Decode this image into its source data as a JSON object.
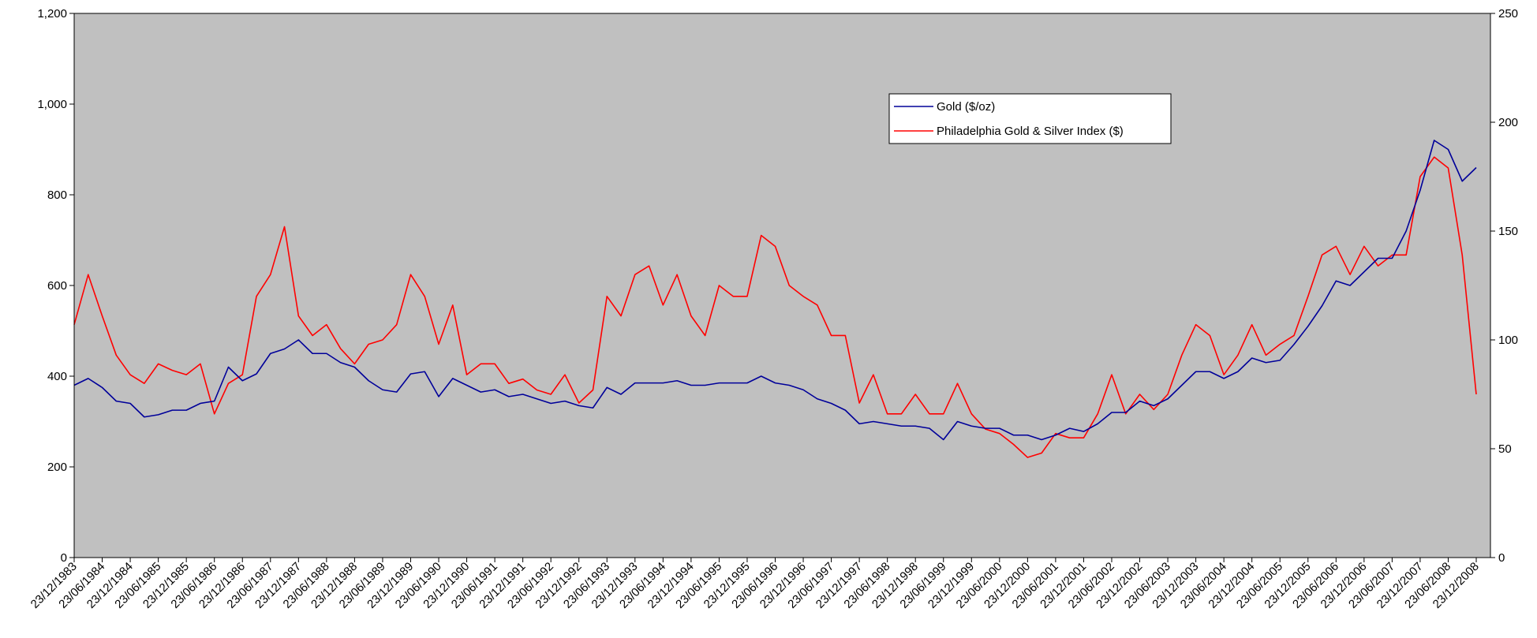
{
  "chart_data": {
    "type": "line",
    "categories": [
      "23/12/1983",
      null,
      "23/06/1984",
      null,
      "23/12/1984",
      null,
      "23/06/1985",
      null,
      "23/12/1985",
      null,
      "23/06/1986",
      null,
      "23/12/1986",
      null,
      "23/06/1987",
      null,
      "23/12/1987",
      null,
      "23/06/1988",
      null,
      "23/12/1988",
      null,
      "23/06/1989",
      null,
      "23/12/1989",
      null,
      "23/06/1990",
      null,
      "23/12/1990",
      null,
      "23/06/1991",
      null,
      "23/12/1991",
      null,
      "23/06/1992",
      null,
      "23/12/1992",
      null,
      "23/06/1993",
      null,
      "23/12/1993",
      null,
      "23/06/1994",
      null,
      "23/12/1994",
      null,
      "23/06/1995",
      null,
      "23/12/1995",
      null,
      "23/06/1996",
      null,
      "23/12/1996",
      null,
      "23/06/1997",
      null,
      "23/12/1997",
      null,
      "23/06/1998",
      null,
      "23/12/1998",
      null,
      "23/06/1999",
      null,
      "23/12/1999",
      null,
      "23/06/2000",
      null,
      "23/12/2000",
      null,
      "23/06/2001",
      null,
      "23/12/2001",
      null,
      "23/06/2002",
      null,
      "23/12/2002",
      null,
      "23/06/2003",
      null,
      "23/12/2003",
      null,
      "23/06/2004",
      null,
      "23/12/2004",
      null,
      "23/06/2005",
      null,
      "23/12/2005",
      null,
      "23/06/2006",
      null,
      "23/12/2006",
      null,
      "23/06/2007",
      null,
      "23/12/2007",
      null,
      "23/06/2008",
      null,
      "23/12/2008"
    ],
    "series": [
      {
        "name": "Gold ($/oz)",
        "color": "#000099",
        "axis": "y",
        "values": [
          380,
          395,
          375,
          345,
          340,
          310,
          315,
          325,
          325,
          340,
          345,
          420,
          390,
          405,
          450,
          460,
          480,
          450,
          450,
          430,
          420,
          390,
          370,
          365,
          405,
          410,
          355,
          395,
          380,
          365,
          370,
          355,
          360,
          350,
          340,
          345,
          335,
          330,
          375,
          360,
          385,
          385,
          385,
          390,
          380,
          380,
          385,
          385,
          385,
          400,
          385,
          380,
          370,
          350,
          340,
          325,
          295,
          300,
          295,
          290,
          290,
          285,
          260,
          300,
          290,
          285,
          285,
          270,
          270,
          260,
          270,
          285,
          278,
          295,
          320,
          320,
          345,
          335,
          350,
          380,
          410,
          410,
          395,
          410,
          440,
          430,
          435,
          470,
          510,
          555,
          610,
          600,
          630,
          660,
          660,
          720,
          810,
          920,
          900,
          830,
          860
        ]
      },
      {
        "name": "Philadelphia Gold & Silver Index ($)",
        "color": "#ff0000",
        "axis": "y2",
        "values": [
          107,
          130,
          111,
          93,
          84,
          80,
          89,
          86,
          84,
          89,
          66,
          80,
          84,
          120,
          130,
          152,
          111,
          102,
          107,
          96,
          89,
          98,
          100,
          107,
          130,
          120,
          98,
          116,
          84,
          89,
          89,
          80,
          82,
          77,
          75,
          84,
          71,
          77,
          120,
          111,
          130,
          134,
          116,
          130,
          111,
          102,
          125,
          120,
          120,
          148,
          143,
          125,
          120,
          116,
          102,
          102,
          71,
          84,
          66,
          66,
          75,
          66,
          66,
          80,
          66,
          59,
          57,
          52,
          46,
          48,
          57,
          55,
          55,
          66,
          84,
          66,
          75,
          68,
          75,
          93,
          107,
          102,
          84,
          93,
          107,
          93,
          98,
          102,
          120,
          139,
          143,
          130,
          143,
          134,
          139,
          139,
          175,
          184,
          179,
          139,
          75
        ]
      }
    ],
    "ylim": [
      0,
      1200
    ],
    "yticks": [
      0,
      200,
      400,
      600,
      800,
      {
        "value": 1000,
        "label": "1,000"
      },
      {
        "value": 1200,
        "label": "1,200"
      }
    ],
    "y2lim": [
      0,
      250
    ],
    "y2ticks": [
      0,
      50,
      100,
      150,
      200,
      250
    ],
    "grid": false,
    "legend": "upper right",
    "background": "#c0c0c0"
  }
}
